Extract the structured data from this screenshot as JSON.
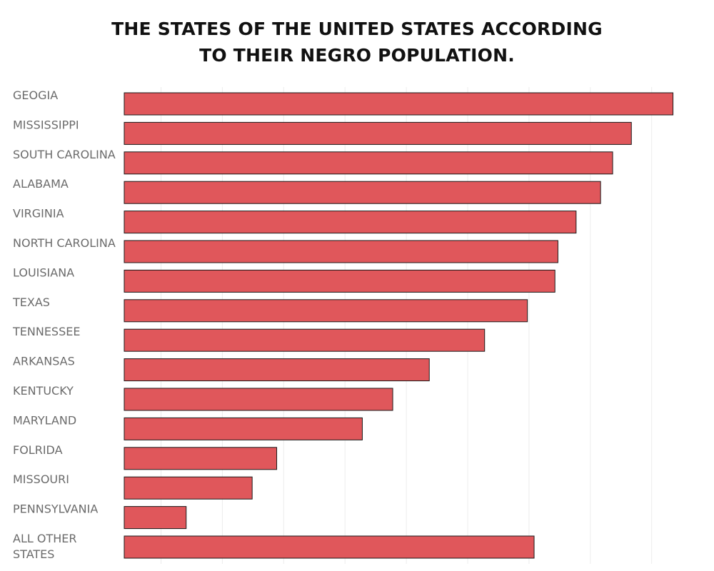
{
  "chart_data": {
    "type": "bar",
    "orientation": "horizontal",
    "title_lines": [
      "THE STATES OF THE UNITED STATES ACCORDING",
      "TO THEIR NEGRO POPULATION."
    ],
    "xlabel": "",
    "ylabel": "",
    "categories": [
      "GEOGIA",
      "MISSISSIPPI",
      "SOUTH CAROLINA",
      "ALABAMA",
      "VIRGINIA",
      "NORTH CAROLINA",
      "LOUISIANA",
      "TEXAS",
      "TENNESSEE",
      "ARKANSAS",
      "KENTUCKY",
      "MARYLAND",
      "FOLRIDA",
      "MISSOURI",
      "PENNSYLVANIA",
      "ALL OTHER STATES"
    ],
    "values": [
      1034800,
      966900,
      936400,
      916700,
      876800,
      847200,
      842300,
      797400,
      727600,
      637400,
      577800,
      528200,
      388600,
      348600,
      241000,
      808300
    ],
    "xlim": [
      140000,
      1090000
    ],
    "grid": true,
    "legend": "none",
    "bar_color": "#e0575b",
    "bar_edge_color": "#1a1a1a"
  }
}
